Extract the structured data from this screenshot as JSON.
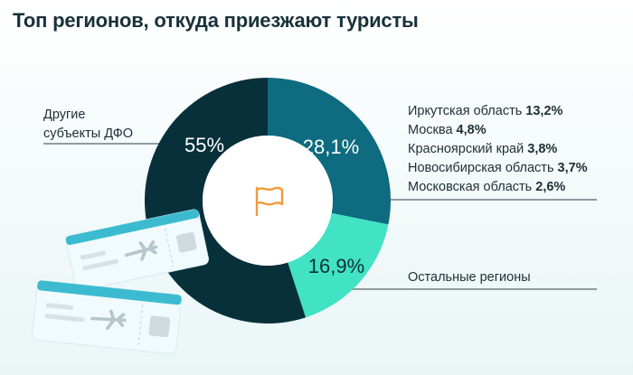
{
  "title": "Топ регионов, откуда приезжают туристы",
  "colors": {
    "dfo": "#07303b",
    "top5": "#0e6b80",
    "remaining": "#41e3c4",
    "flag": "#f29a3e",
    "ticket_top": "#3cbbd0",
    "ticket_body": "#f1fafc"
  },
  "labels": {
    "dfo": "Другие\nсубъекты ДФО",
    "remaining": "Остальные регионы"
  },
  "top_regions": [
    {
      "name": "Иркутская область",
      "value": "13,2%"
    },
    {
      "name": "Москва",
      "value": "4,8%"
    },
    {
      "name": "Красноярский край",
      "value": "3,8%"
    },
    {
      "name": "Новосибирская область",
      "value": "3,7%"
    },
    {
      "name": "Московская область",
      "value": "2,6%"
    }
  ],
  "icons": [
    "flag-icon",
    "plane-icon",
    "ticket-icon"
  ],
  "chart_data": {
    "type": "pie",
    "donut": true,
    "categories": [
      "Другие субъекты ДФО",
      "Иркутская область, Москва, Красноярский край, Новосибирская область, Московская область",
      "Остальные регионы"
    ],
    "values": [
      55,
      28.1,
      16.9
    ],
    "value_labels": [
      "55%",
      "28,1%",
      "16,9%"
    ],
    "title": "Топ регионов, откуда приезжают туристы"
  }
}
